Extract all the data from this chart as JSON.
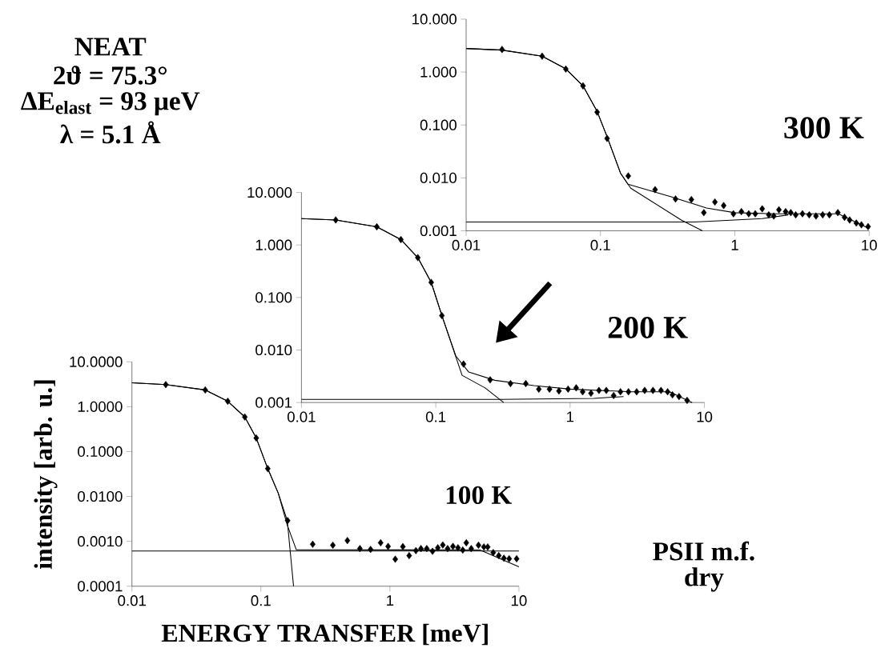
{
  "chart_data": [
    {
      "type": "scatter",
      "log": "xy",
      "xlim": [
        0.01,
        10
      ],
      "ylim": [
        0.001,
        10
      ],
      "xticks": [
        0.01,
        0.1,
        1,
        10
      ],
      "yticks": [
        {
          "value": 0.001,
          "label": "0.001"
        },
        {
          "value": 0.01,
          "label": "0.010"
        },
        {
          "value": 0.1,
          "label": "0.100"
        },
        {
          "value": 1,
          "label": "1.000"
        },
        {
          "value": 10,
          "label": "10.000"
        }
      ],
      "annotations": [
        "NEAT",
        "2ϑ = 75.3°",
        "ΔE$_{elast}$ = 93 μeV",
        "λ = 5.1 Å",
        "300 K"
      ],
      "series": [
        {
          "marker": "diamond",
          "color": "#000000",
          "x": [
            0.0185,
            0.0368,
            0.0552,
            0.0741,
            0.0944,
            0.112,
            0.161,
            0.255,
            0.362,
            0.475,
            0.588,
            0.711,
            0.826,
            0.977,
            1.12,
            1.27,
            1.42,
            1.6,
            1.79,
            1.95,
            2.13,
            2.39,
            2.61,
            2.84,
            3.19,
            3.58,
            4.02,
            4.51,
            5.06,
            5.85,
            6.56,
            7.16,
            8.03,
            8.76,
            9.82
          ],
          "values": [
            2.67,
            2.0,
            1.14,
            0.548,
            0.175,
            0.0556,
            0.0109,
            0.006,
            0.004,
            0.0039,
            0.0022,
            0.0035,
            0.003,
            0.0021,
            0.0023,
            0.0021,
            0.0021,
            0.0026,
            0.002,
            0.0019,
            0.0025,
            0.0023,
            0.0022,
            0.002,
            0.0021,
            0.002,
            0.0019,
            0.002,
            0.002,
            0.0022,
            0.0018,
            0.0016,
            0.0014,
            0.0013,
            0.0012
          ]
        },
        {
          "type": "line",
          "marker": "none",
          "color": "#000000",
          "x": [
            0.01,
            0.0185,
            0.0368,
            0.0552,
            0.0741,
            0.0944,
            0.112,
            0.141,
            0.16,
            0.336,
            0.615,
            1,
            2,
            5.9,
            10
          ],
          "values": [
            2.79,
            2.6,
            2.0,
            1.15,
            0.55,
            0.18,
            0.06,
            0.0123,
            0.0076,
            0.0044,
            0.0027,
            0.0022,
            0.0021,
            0.0021,
            0.0011
          ]
        },
        {
          "type": "line",
          "marker": "none",
          "color": "#000000",
          "x": [
            0.01,
            0.0185,
            0.0368,
            0.0552,
            0.0741,
            0.0944,
            0.112,
            0.141,
            0.168,
            0.399,
            0.574
          ],
          "values": [
            2.79,
            2.6,
            2.0,
            1.15,
            0.55,
            0.18,
            0.06,
            0.0123,
            0.0064,
            0.0016,
            0.001
          ]
        },
        {
          "type": "line",
          "marker": "none",
          "color": "#000000",
          "x": [
            0.01,
            0.5,
            1.6,
            2.5
          ],
          "values": [
            0.00147,
            0.00147,
            0.0017,
            0.002
          ]
        }
      ]
    },
    {
      "type": "scatter",
      "log": "xy",
      "xlim": [
        0.01,
        10
      ],
      "ylim": [
        0.001,
        10
      ],
      "xticks": [
        0.01,
        0.1,
        1,
        10
      ],
      "yticks": [
        {
          "value": 0.001,
          "label": "0.001"
        },
        {
          "value": 0.01,
          "label": "0.010"
        },
        {
          "value": 0.1,
          "label": "0.100"
        },
        {
          "value": 1,
          "label": "1.000"
        },
        {
          "value": 10,
          "label": "10.000"
        }
      ],
      "annotations": [
        "200 K"
      ],
      "series": [
        {
          "marker": "diamond",
          "color": "#000000",
          "x": [
            0.018,
            0.0364,
            0.055,
            0.0735,
            0.0925,
            0.111,
            0.161,
            0.254,
            0.36,
            0.468,
            0.585,
            0.703,
            0.826,
            0.966,
            1.11,
            1.24,
            1.43,
            1.64,
            1.86,
            2.11,
            2.37,
            2.72,
            3.13,
            3.59,
            4.14,
            4.75,
            5.32,
            5.78,
            6.47,
            7.43
          ],
          "values": [
            3.0,
            2.22,
            1.27,
            0.574,
            0.194,
            0.0453,
            0.0054,
            0.0027,
            0.0023,
            0.0023,
            0.0018,
            0.0018,
            0.00166,
            0.0018,
            0.0019,
            0.0016,
            0.0015,
            0.0017,
            0.0017,
            0.00136,
            0.0016,
            0.0016,
            0.0016,
            0.0017,
            0.0017,
            0.0017,
            0.0016,
            0.0014,
            0.0013,
            0.0011
          ]
        },
        {
          "type": "line",
          "marker": "none",
          "color": "#000000",
          "x": [
            0.01,
            0.018,
            0.0364,
            0.055,
            0.0735,
            0.0925,
            0.111,
            0.141,
            0.176,
            0.275,
            0.538,
            1,
            2.88,
            5.5,
            8.1
          ],
          "values": [
            3.18,
            3.0,
            2.22,
            1.27,
            0.574,
            0.194,
            0.0453,
            0.0077,
            0.0038,
            0.00265,
            0.0021,
            0.0018,
            0.0016,
            0.0016,
            0.001
          ]
        },
        {
          "type": "line",
          "marker": "none",
          "color": "#000000",
          "x": [
            0.01,
            0.018,
            0.0364,
            0.055,
            0.0735,
            0.0925,
            0.111,
            0.157,
            0.233,
            0.32
          ],
          "values": [
            3.18,
            3.0,
            2.22,
            1.27,
            0.574,
            0.194,
            0.0453,
            0.0033,
            0.0019,
            0.001
          ]
        },
        {
          "type": "line",
          "marker": "none",
          "color": "#000000",
          "x": [
            0.01,
            0.3,
            1.5,
            2.5
          ],
          "values": [
            0.00115,
            0.00115,
            0.0012,
            0.0013
          ]
        }
      ]
    },
    {
      "type": "scatter",
      "log": "xy",
      "xlim": [
        0.01,
        10
      ],
      "ylim": [
        0.0001,
        10
      ],
      "xlabel": "ENERGY TRANSFER [meV]",
      "ylabel": "intensity [arb. u.]",
      "xticks": [
        0.01,
        0.1,
        1,
        10
      ],
      "yticks": [
        {
          "value": 0.0001,
          "label": "0.0001"
        },
        {
          "value": 0.001,
          "label": "0.0010"
        },
        {
          "value": 0.01,
          "label": "0.0100"
        },
        {
          "value": 0.1,
          "label": "0.1000"
        },
        {
          "value": 1,
          "label": "1.0000"
        },
        {
          "value": 10,
          "label": "10.0000"
        }
      ],
      "annotations": [
        "100 K",
        "PSII m.f.",
        "dry"
      ],
      "series": [
        {
          "marker": "diamond",
          "color": "#000000",
          "x": [
            0.0183,
            0.037,
            0.0553,
            0.075,
            0.092,
            0.113,
            0.161,
            0.252,
            0.361,
            0.468,
            0.585,
            0.708,
            0.847,
            0.968,
            1.1,
            1.26,
            1.41,
            1.59,
            1.74,
            1.93,
            2.14,
            2.35,
            2.57,
            2.8,
            3.08,
            3.37,
            3.67,
            3.91,
            4.27,
            4.86,
            5.35,
            5.73,
            6.32,
            6.98,
            7.65,
            8.4,
            9.6
          ],
          "values": [
            3.1,
            2.36,
            1.32,
            0.589,
            0.2,
            0.0416,
            0.0029,
            0.00086,
            0.00082,
            0.00104,
            0.00069,
            0.00066,
            0.00093,
            0.00077,
            0.0004,
            0.00076,
            0.00048,
            0.00062,
            0.00069,
            0.00069,
            0.0006,
            0.00072,
            0.00083,
            0.00069,
            0.00077,
            0.00072,
            0.00064,
            0.00093,
            0.00069,
            0.00082,
            0.00075,
            0.00075,
            0.00056,
            0.00048,
            0.00042,
            0.00041,
            0.00041
          ]
        },
        {
          "type": "line",
          "marker": "none",
          "color": "#000000",
          "x": [
            0.01,
            0.0183,
            0.037,
            0.0553,
            0.075,
            0.092,
            0.113,
            0.136,
            0.16,
            0.188,
            5,
            10
          ],
          "values": [
            3.4,
            3.1,
            2.36,
            1.32,
            0.589,
            0.2,
            0.0416,
            0.012,
            0.0023,
            0.00065,
            0.00064,
            0.00027
          ]
        },
        {
          "type": "line",
          "marker": "none",
          "color": "#000000",
          "x": [
            0.01,
            0.0183,
            0.037,
            0.0553,
            0.075,
            0.092,
            0.113,
            0.136,
            0.16,
            0.179
          ],
          "values": [
            3.4,
            3.1,
            2.36,
            1.32,
            0.589,
            0.2,
            0.0416,
            0.012,
            0.0029,
            0.0001
          ]
        },
        {
          "type": "line",
          "marker": "none",
          "color": "#000000",
          "x": [
            0.01,
            10
          ],
          "values": [
            0.00061,
            0.00061
          ]
        }
      ]
    }
  ]
}
